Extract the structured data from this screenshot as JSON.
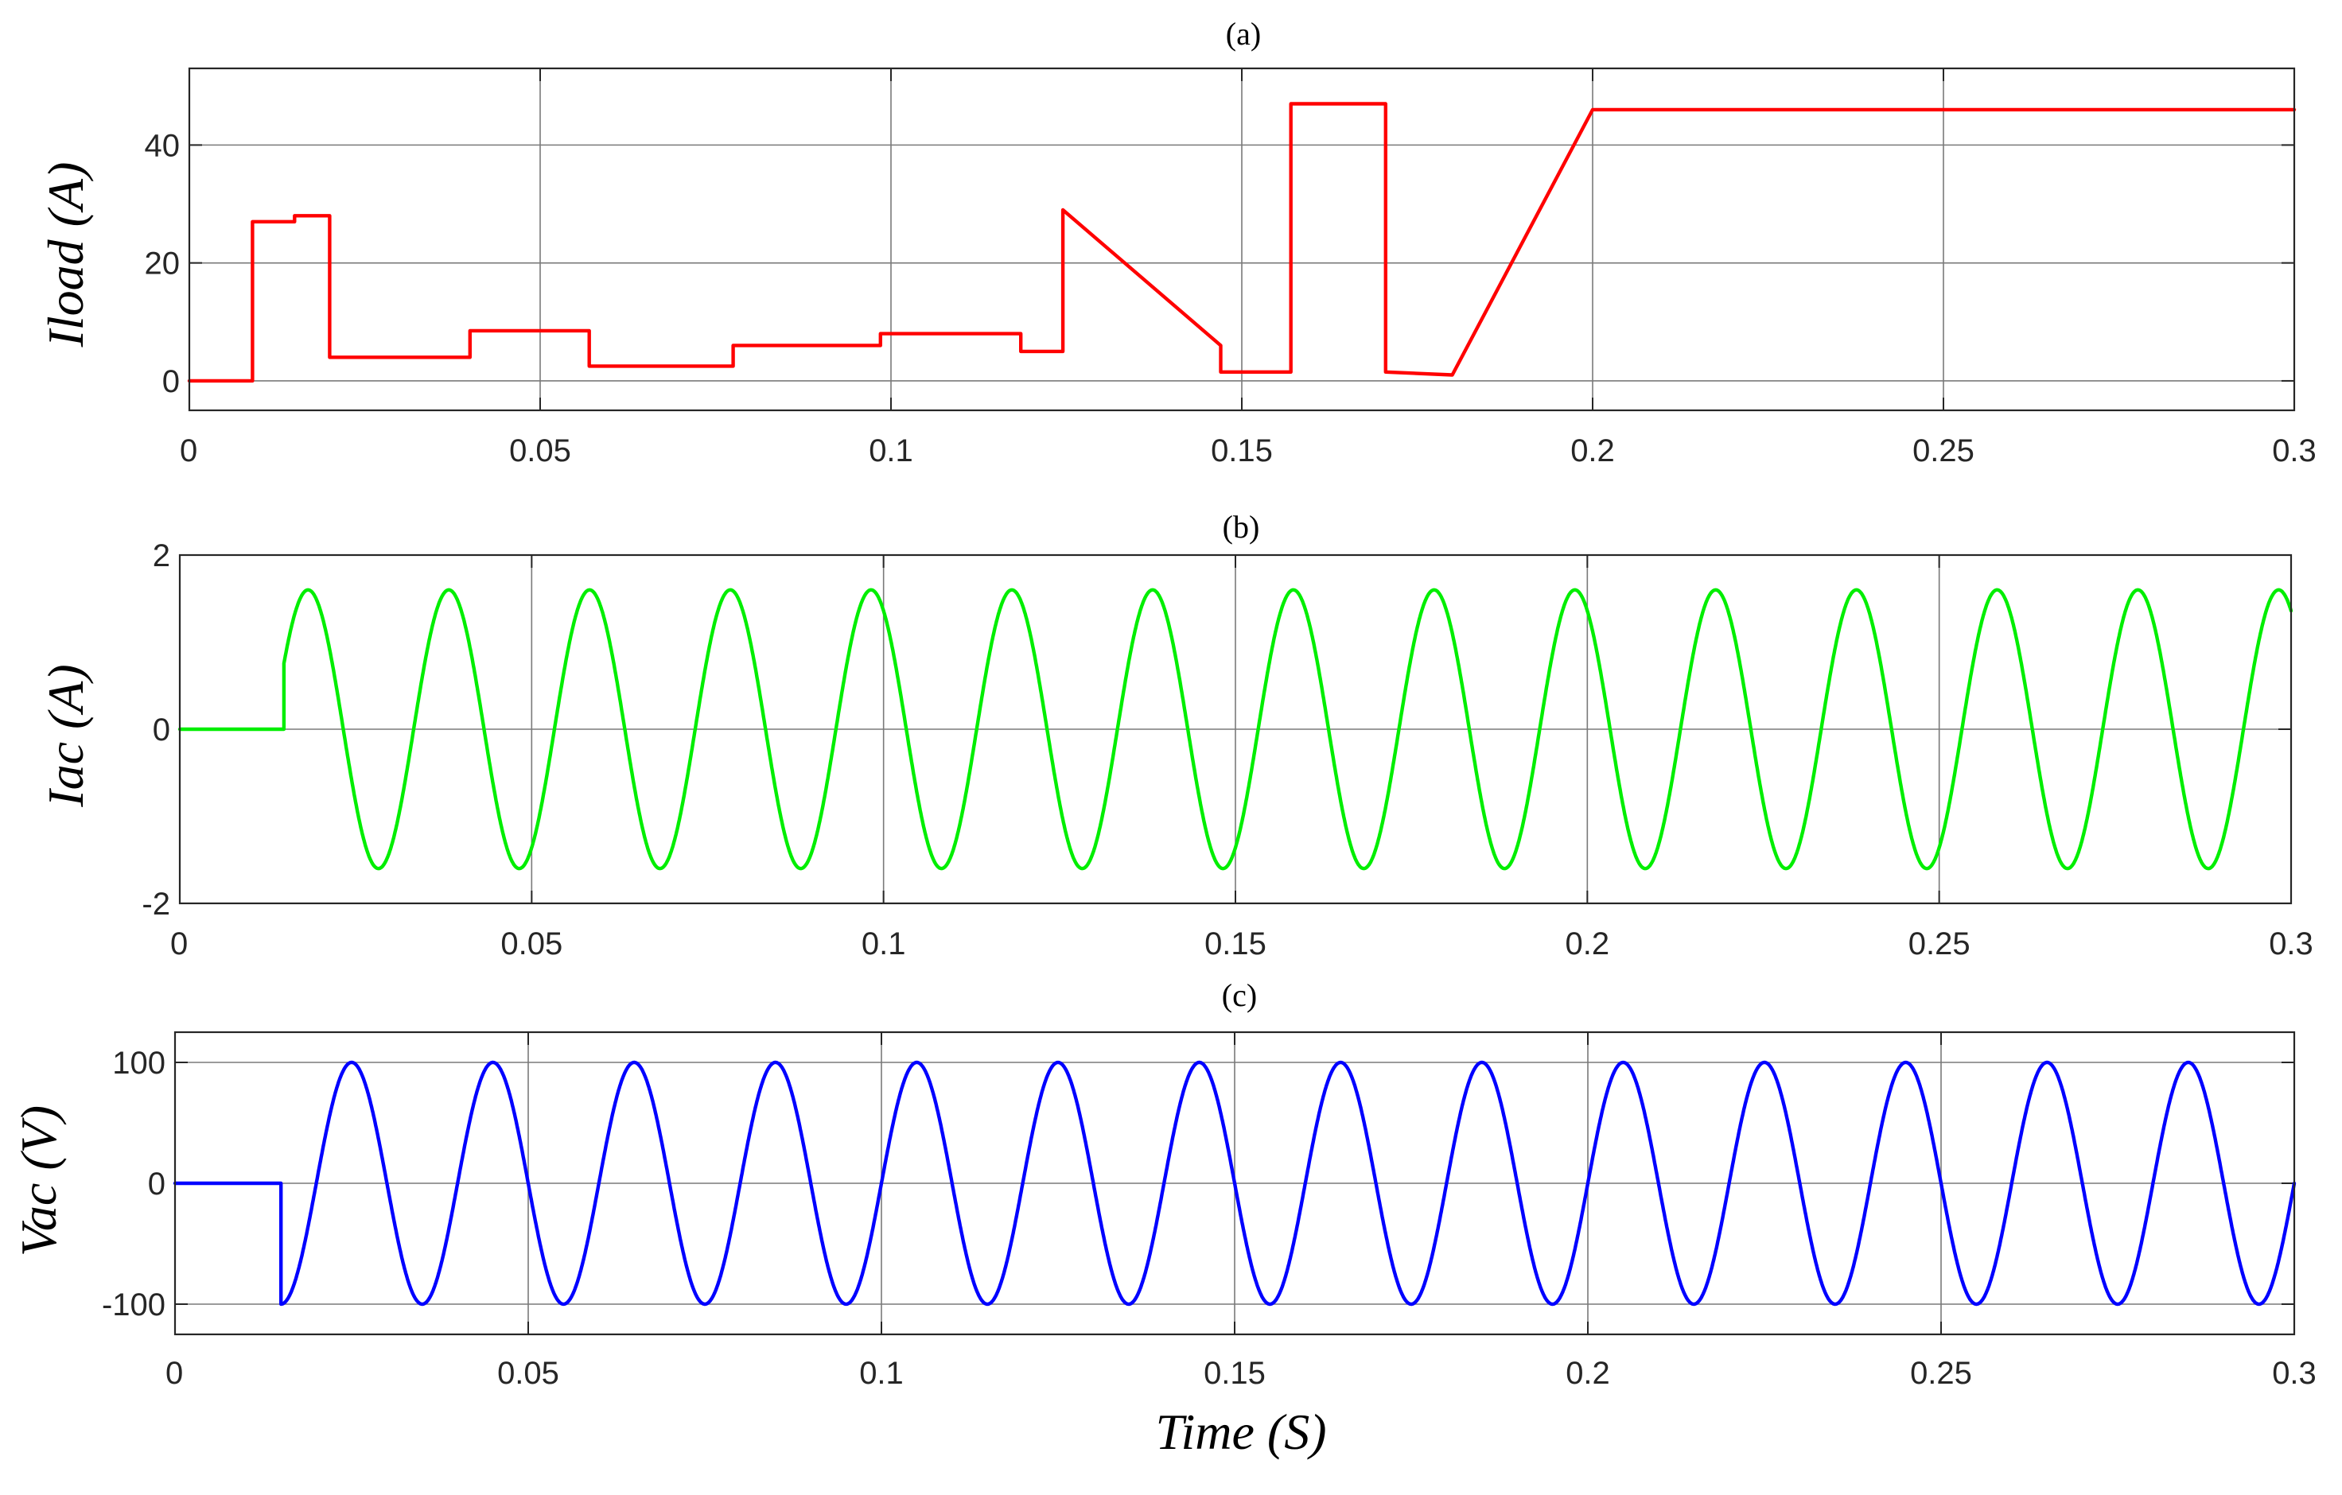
{
  "chart_data": [
    {
      "id": "a",
      "type": "line",
      "title": "(a)",
      "xlabel": "",
      "ylabel": "Iload (A)",
      "xlim": [
        0,
        0.3
      ],
      "ylim": [
        -5,
        53
      ],
      "xticks": [
        0,
        0.05,
        0.1,
        0.15,
        0.2,
        0.25,
        0.3
      ],
      "xtick_labels": [
        "0",
        "0.05",
        "0.1",
        "0.15",
        "0.2",
        "0.25",
        "0.3"
      ],
      "yticks": [
        0,
        20,
        40
      ],
      "ytick_labels": [
        "0",
        "20",
        "40"
      ],
      "grid": true,
      "color": "#ff0000",
      "series": [
        {
          "name": "Iload",
          "kind": "points",
          "x": [
            0,
            0.009,
            0.009,
            0.015,
            0.015,
            0.02,
            0.02,
            0.04,
            0.04,
            0.057,
            0.057,
            0.0775,
            0.0775,
            0.0985,
            0.0985,
            0.1185,
            0.1185,
            0.1245,
            0.1245,
            0.147,
            0.147,
            0.157,
            0.157,
            0.1705,
            0.1705,
            0.18,
            0.2,
            0.3
          ],
          "y": [
            0,
            0,
            27,
            27,
            28,
            28,
            4,
            4,
            8.5,
            8.5,
            2.5,
            2.5,
            6,
            6,
            8,
            8,
            5,
            5,
            29,
            6,
            1.5,
            1.5,
            47,
            47,
            1.5,
            1,
            46,
            46
          ]
        }
      ]
    },
    {
      "id": "b",
      "type": "line",
      "title": "(b)",
      "xlabel": "",
      "ylabel": "Iac (A)",
      "xlim": [
        0,
        0.3
      ],
      "ylim": [
        -2,
        2
      ],
      "xticks": [
        0,
        0.05,
        0.1,
        0.15,
        0.2,
        0.25,
        0.3
      ],
      "xtick_labels": [
        "0",
        "0.05",
        "0.1",
        "0.15",
        "0.2",
        "0.25",
        "0.3"
      ],
      "yticks": [
        -2,
        0,
        2
      ],
      "ytick_labels": [
        "-2",
        "0",
        "2"
      ],
      "grid": true,
      "color": "#00ee00",
      "series": [
        {
          "name": "Iac",
          "kind": "sine",
          "start": 0.0148,
          "amplitude": 1.6,
          "frequency_hz": 50,
          "phase_rad": 0.4925
        }
      ]
    },
    {
      "id": "c",
      "type": "line",
      "title": "(c)",
      "xlabel": "Time (S)",
      "ylabel": "Vac (V)",
      "xlim": [
        0,
        0.3
      ],
      "ylim": [
        -125,
        125
      ],
      "xticks": [
        0,
        0.05,
        0.1,
        0.15,
        0.2,
        0.25,
        0.3
      ],
      "xtick_labels": [
        "0",
        "0.05",
        "0.1",
        "0.15",
        "0.2",
        "0.25",
        "0.3"
      ],
      "yticks": [
        -100,
        0,
        100
      ],
      "ytick_labels": [
        "-100",
        "0",
        "100"
      ],
      "grid": true,
      "color": "#0000ff",
      "series": [
        {
          "name": "Vac",
          "kind": "sine",
          "start": 0.015,
          "amplitude": 100,
          "frequency_hz": 50,
          "phase_rad": -1.5708
        }
      ]
    }
  ]
}
